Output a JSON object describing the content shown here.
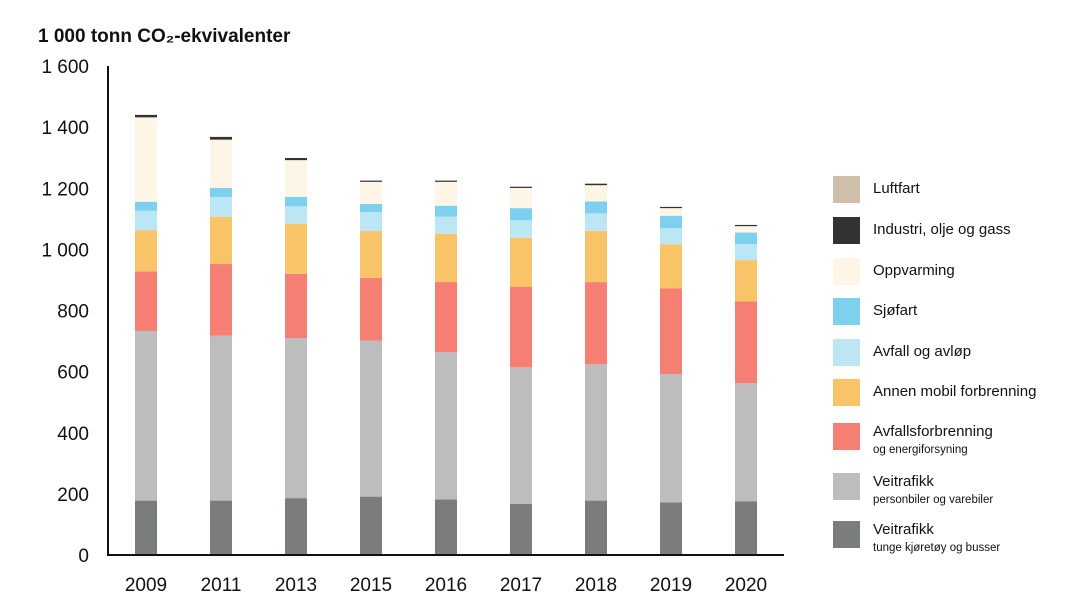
{
  "chart_data": {
    "type": "bar",
    "stacked": true,
    "title": "1 000 tonn CO₂-ekvivalenter",
    "xlabel": "",
    "ylabel": "1 000 tonn CO₂-ekvivalenter",
    "ylim": [
      0,
      1600
    ],
    "yticks": [
      0,
      200,
      400,
      600,
      800,
      1000,
      1200,
      1400,
      1600
    ],
    "ytick_labels": [
      "0",
      "200",
      "400",
      "600",
      "800",
      "1 000",
      "1 200",
      "1 400",
      "1 600"
    ],
    "grid": false,
    "legend_position": "right",
    "categories": [
      "2009",
      "2011",
      "2013",
      "2015",
      "2016",
      "2017",
      "2018",
      "2019",
      "2020"
    ],
    "series": [
      {
        "name": "Veitrafikk",
        "sub": "tunge kjøretøy og busser",
        "color": "#7b7d7d",
        "values": [
          178,
          178,
          186,
          191,
          182,
          167,
          178,
          172,
          176
        ]
      },
      {
        "name": "Veitrafikk",
        "sub": "personbiler og varebiler",
        "color": "#bdbdbd",
        "values": [
          555,
          540,
          524,
          511,
          482,
          447,
          446,
          420,
          386
        ]
      },
      {
        "name": "Avfallsforbrenning",
        "sub": "og energiforsyning",
        "color": "#f47f72",
        "values": [
          195,
          234,
          210,
          205,
          229,
          264,
          269,
          280,
          268
        ]
      },
      {
        "name": "Annen mobil forbrenning",
        "sub": "",
        "color": "#f9c468",
        "values": [
          135,
          155,
          164,
          153,
          158,
          160,
          168,
          145,
          135
        ]
      },
      {
        "name": "Avfall og avløp",
        "sub": "",
        "color": "#bde6f5",
        "values": [
          63,
          64,
          57,
          62,
          56,
          57,
          57,
          52,
          52
        ]
      },
      {
        "name": "Sjøfart",
        "sub": "",
        "color": "#7dd1ee",
        "values": [
          30,
          30,
          31,
          27,
          36,
          40,
          39,
          41,
          38
        ]
      },
      {
        "name": "Oppvarming",
        "sub": "",
        "color": "#fdf6e6",
        "values": [
          276,
          158,
          120,
          72,
          78,
          66,
          53,
          25,
          21
        ]
      },
      {
        "name": "Industri, olje og gass",
        "sub": "",
        "color": "#333333",
        "values": [
          8,
          9,
          7,
          4,
          4,
          4,
          5,
          4,
          4
        ]
      },
      {
        "name": "Luftfart",
        "sub": "",
        "color": "#cfbfaa",
        "values": [
          0,
          0,
          0,
          0,
          0,
          0,
          0,
          0,
          0
        ]
      }
    ]
  }
}
